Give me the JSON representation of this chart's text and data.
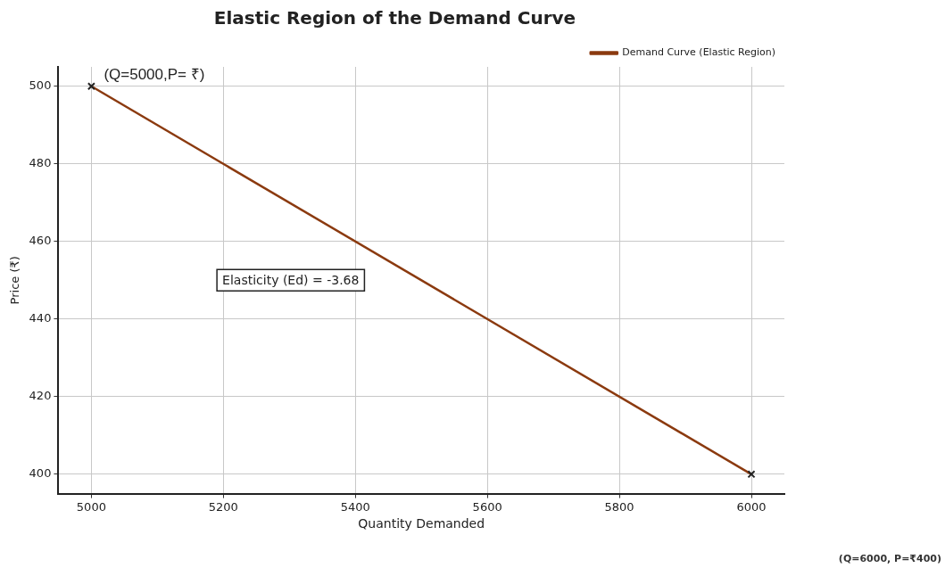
{
  "chart_data": {
    "type": "line",
    "title": "Elastic Region of the Demand Curve",
    "xlabel": "Quantity Demanded",
    "ylabel": "Price (₹)",
    "x": [
      5000,
      6000
    ],
    "series": [
      {
        "name": "Demand Curve (Elastic Region)",
        "color": "#8b3a0f",
        "values": [
          500,
          400
        ]
      }
    ],
    "xlim": [
      4950,
      6050
    ],
    "xticks": [
      5000,
      5200,
      5400,
      5600,
      5800,
      6000
    ],
    "ylim": [
      395,
      505
    ],
    "yticks": [
      400,
      420,
      440,
      460,
      480,
      500
    ],
    "grid": true,
    "legend": "top right",
    "marker": "cross",
    "line_style": "solid",
    "annotations": [
      {
        "text": "(Q=5000,P= ₹)",
        "x": 5000,
        "y": 500
      },
      "Elasticity (Ed) = -3.68",
      "(Q=6000, P=₹400)"
    ]
  }
}
